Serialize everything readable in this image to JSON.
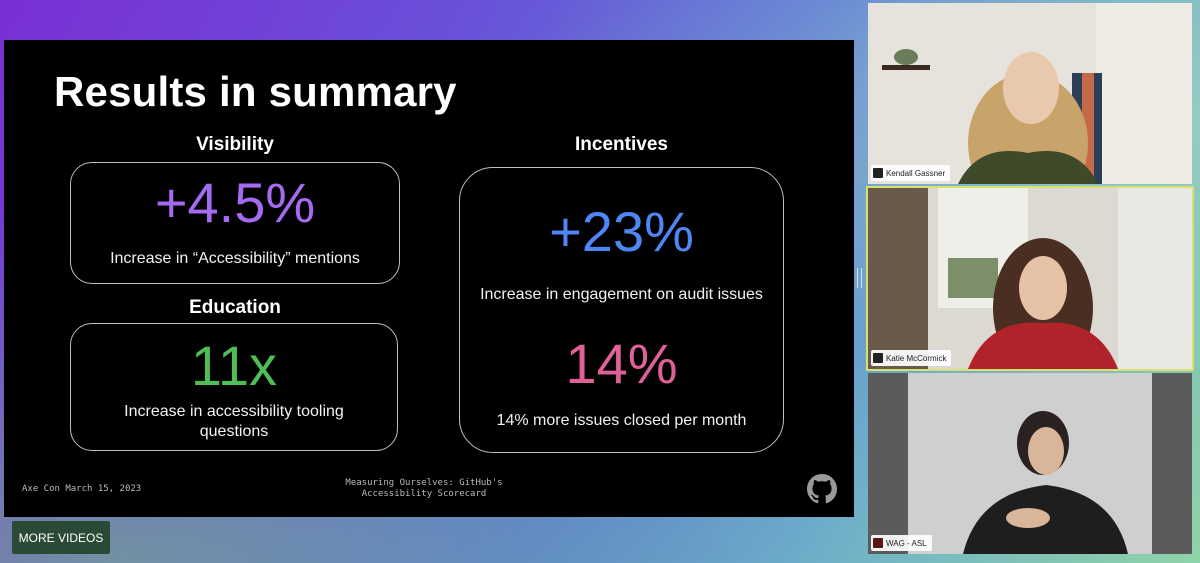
{
  "slide": {
    "title": "Results in summary",
    "sections": {
      "visibility": {
        "heading": "Visibility",
        "stat": "+4.5%",
        "stat_color": "#a46bf2",
        "description": "Increase in “Accessibility” mentions"
      },
      "education": {
        "heading": "Education",
        "stat": "11x",
        "stat_color": "#4fbf55",
        "description_line1": "Increase in accessibility tooling",
        "description_line2": "questions"
      },
      "incentives": {
        "heading": "Incentives",
        "stat1": "+23%",
        "stat1_color": "#4f86f5",
        "description1": "Increase in engagement on audit issues",
        "stat2": "14%",
        "stat2_color": "#e0609a",
        "description2": "14% more issues closed per month"
      }
    },
    "footer": {
      "event": "Axe Con March 15, 2023",
      "talk_line1": "Measuring Ourselves: GitHub's",
      "talk_line2": "Accessibility Scorecard",
      "logo_icon": "github-icon"
    }
  },
  "more_videos_label": "MORE VIDEOS",
  "participants": [
    {
      "name": "Kendall Gassner",
      "icon": "pin-icon"
    },
    {
      "name": "Katie McCormick",
      "icon": "pin-icon",
      "active_speaker": true,
      "active_color": "#d8e070"
    },
    {
      "name": "WAG - ASL",
      "icon": "pin-icon"
    }
  ]
}
